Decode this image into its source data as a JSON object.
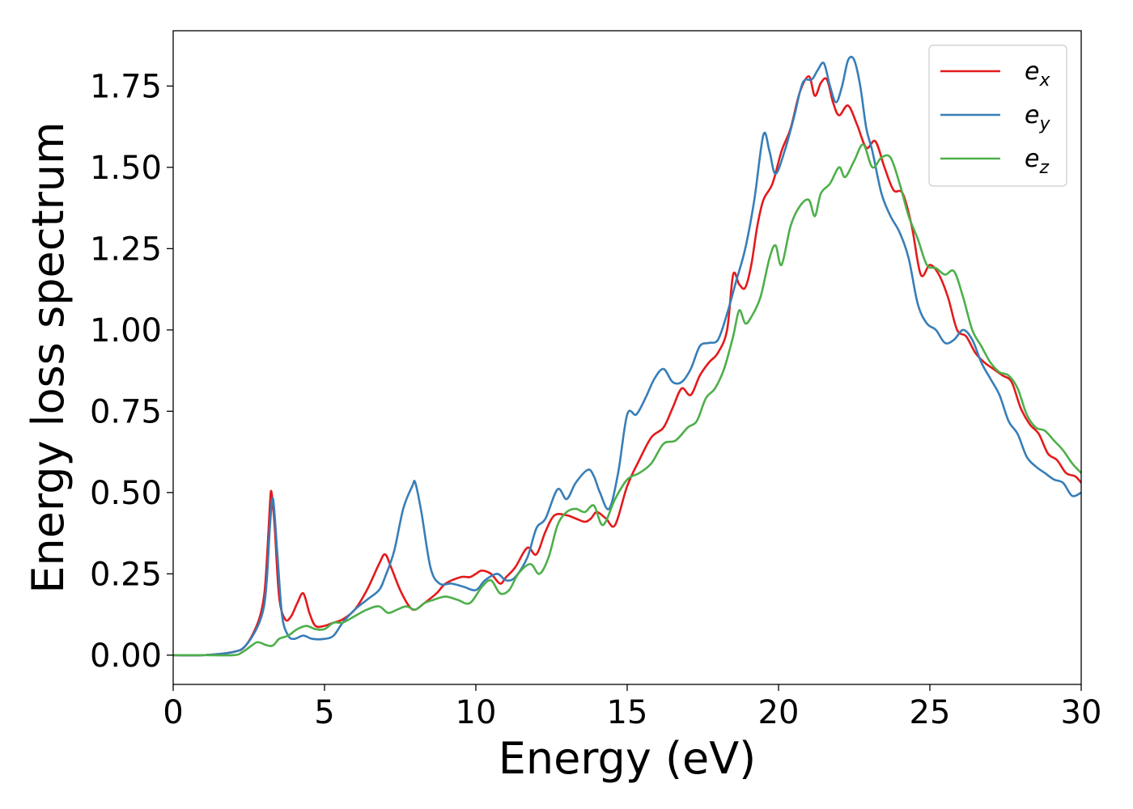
{
  "chart_data": {
    "type": "line",
    "xlabel": "Energy (eV)",
    "ylabel": "Energy loss spectrum",
    "xlim": [
      0,
      30
    ],
    "ylim": [
      -0.09,
      1.92
    ],
    "xticks": [
      0,
      5,
      10,
      15,
      20,
      25,
      30
    ],
    "xtick_labels": [
      "0",
      "5",
      "10",
      "15",
      "20",
      "25",
      "30"
    ],
    "yticks": [
      0.0,
      0.25,
      0.5,
      0.75,
      1.0,
      1.25,
      1.5,
      1.75
    ],
    "ytick_labels": [
      "0.00",
      "0.25",
      "0.50",
      "0.75",
      "1.00",
      "1.25",
      "1.50",
      "1.75"
    ],
    "grid": false,
    "legend_position": "top-right",
    "series": [
      {
        "name": "e",
        "subscript": "x",
        "color": "#e41a1c",
        "x": [
          0,
          1,
          2,
          2.4,
          2.8,
          3.0,
          3.1,
          3.2,
          3.25,
          3.35,
          3.5,
          3.7,
          3.9,
          4.1,
          4.3,
          4.5,
          4.7,
          5.0,
          5.3,
          5.6,
          6.0,
          6.4,
          6.8,
          7.0,
          7.2,
          7.5,
          7.8,
          8.0,
          8.3,
          8.7,
          9.0,
          9.5,
          9.8,
          10.0,
          10.2,
          10.5,
          10.8,
          11.0,
          11.3,
          11.7,
          12.0,
          12.3,
          12.6,
          13.0,
          13.3,
          13.6,
          13.8,
          14.0,
          14.3,
          14.6,
          15.0,
          15.4,
          15.8,
          16.2,
          16.5,
          16.8,
          17.1,
          17.4,
          17.7,
          18.0,
          18.3,
          18.5,
          18.7,
          18.9,
          19.1,
          19.3,
          19.5,
          19.8,
          20.1,
          20.4,
          20.7,
          21.0,
          21.2,
          21.4,
          21.6,
          21.8,
          22.0,
          22.3,
          22.6,
          22.9,
          23.2,
          23.5,
          23.8,
          24.1,
          24.4,
          24.7,
          25.0,
          25.3,
          25.6,
          25.9,
          26.2,
          26.5,
          26.8,
          27.1,
          27.4,
          27.7,
          28.0,
          28.3,
          28.6,
          28.9,
          29.2,
          29.5,
          29.8,
          30
        ],
        "values": [
          0.0,
          0.0,
          0.01,
          0.03,
          0.1,
          0.18,
          0.3,
          0.47,
          0.5,
          0.4,
          0.18,
          0.11,
          0.12,
          0.16,
          0.19,
          0.13,
          0.09,
          0.09,
          0.1,
          0.11,
          0.14,
          0.2,
          0.28,
          0.31,
          0.27,
          0.2,
          0.15,
          0.14,
          0.16,
          0.19,
          0.22,
          0.24,
          0.24,
          0.25,
          0.26,
          0.25,
          0.22,
          0.24,
          0.27,
          0.33,
          0.31,
          0.38,
          0.43,
          0.43,
          0.42,
          0.41,
          0.42,
          0.44,
          0.42,
          0.4,
          0.52,
          0.6,
          0.67,
          0.7,
          0.76,
          0.82,
          0.8,
          0.86,
          0.9,
          0.93,
          1.0,
          1.17,
          1.14,
          1.13,
          1.2,
          1.32,
          1.4,
          1.45,
          1.55,
          1.62,
          1.73,
          1.78,
          1.72,
          1.76,
          1.77,
          1.7,
          1.66,
          1.69,
          1.63,
          1.56,
          1.58,
          1.5,
          1.43,
          1.42,
          1.32,
          1.17,
          1.2,
          1.17,
          1.1,
          1.0,
          0.98,
          0.93,
          0.9,
          0.88,
          0.86,
          0.84,
          0.76,
          0.71,
          0.68,
          0.62,
          0.6,
          0.56,
          0.55,
          0.53
        ]
      },
      {
        "name": "e",
        "subscript": "y",
        "color": "#377eb8",
        "x": [
          0,
          1,
          2,
          2.4,
          2.8,
          3.0,
          3.1,
          3.2,
          3.3,
          3.45,
          3.6,
          3.8,
          4.0,
          4.3,
          4.6,
          5.0,
          5.3,
          5.6,
          6.0,
          6.4,
          6.8,
          7.0,
          7.3,
          7.6,
          7.9,
          8.0,
          8.2,
          8.5,
          8.8,
          9.2,
          9.6,
          10.0,
          10.3,
          10.7,
          11.0,
          11.3,
          11.7,
          12.0,
          12.3,
          12.7,
          13.0,
          13.3,
          13.7,
          13.9,
          14.1,
          14.4,
          14.7,
          15.0,
          15.3,
          15.6,
          15.9,
          16.2,
          16.5,
          16.8,
          17.1,
          17.4,
          17.7,
          18.0,
          18.3,
          18.6,
          18.9,
          19.2,
          19.5,
          19.7,
          19.9,
          20.2,
          20.5,
          20.8,
          21.1,
          21.3,
          21.5,
          21.7,
          21.9,
          22.1,
          22.3,
          22.5,
          22.7,
          22.9,
          23.1,
          23.4,
          23.7,
          24.0,
          24.3,
          24.6,
          24.9,
          25.2,
          25.5,
          25.8,
          26.1,
          26.4,
          26.7,
          27.0,
          27.3,
          27.6,
          27.9,
          28.2,
          28.5,
          28.8,
          29.1,
          29.4,
          29.7,
          30
        ],
        "values": [
          0.0,
          0.0,
          0.01,
          0.03,
          0.09,
          0.15,
          0.24,
          0.4,
          0.48,
          0.3,
          0.12,
          0.06,
          0.05,
          0.06,
          0.05,
          0.05,
          0.06,
          0.1,
          0.14,
          0.17,
          0.2,
          0.24,
          0.32,
          0.45,
          0.52,
          0.53,
          0.44,
          0.27,
          0.22,
          0.22,
          0.21,
          0.2,
          0.23,
          0.25,
          0.23,
          0.24,
          0.3,
          0.39,
          0.42,
          0.51,
          0.48,
          0.53,
          0.57,
          0.55,
          0.5,
          0.45,
          0.56,
          0.74,
          0.74,
          0.79,
          0.85,
          0.88,
          0.84,
          0.84,
          0.88,
          0.95,
          0.96,
          0.97,
          1.05,
          1.15,
          1.25,
          1.4,
          1.6,
          1.55,
          1.48,
          1.55,
          1.65,
          1.76,
          1.77,
          1.8,
          1.82,
          1.75,
          1.7,
          1.75,
          1.83,
          1.83,
          1.75,
          1.62,
          1.55,
          1.42,
          1.35,
          1.3,
          1.22,
          1.08,
          1.02,
          1.0,
          0.96,
          0.97,
          1.0,
          0.97,
          0.9,
          0.85,
          0.8,
          0.72,
          0.68,
          0.61,
          0.58,
          0.56,
          0.54,
          0.53,
          0.49,
          0.5
        ]
      },
      {
        "name": "e",
        "subscript": "z",
        "color": "#4daf4a",
        "x": [
          0,
          1,
          2,
          2.3,
          2.6,
          2.8,
          3.1,
          3.3,
          3.5,
          3.8,
          4.1,
          4.4,
          4.7,
          5.0,
          5.3,
          5.6,
          6.0,
          6.4,
          6.8,
          7.1,
          7.4,
          7.7,
          8.0,
          8.3,
          8.6,
          9.0,
          9.4,
          9.8,
          10.2,
          10.5,
          10.8,
          11.1,
          11.4,
          11.8,
          12.1,
          12.4,
          12.7,
          13.0,
          13.3,
          13.6,
          13.9,
          14.2,
          14.6,
          15.0,
          15.4,
          15.8,
          16.2,
          16.6,
          17.0,
          17.3,
          17.6,
          17.9,
          18.2,
          18.5,
          18.7,
          18.9,
          19.1,
          19.4,
          19.7,
          19.9,
          20.1,
          20.4,
          20.7,
          21.0,
          21.2,
          21.4,
          21.7,
          22.0,
          22.2,
          22.5,
          22.8,
          23.1,
          23.4,
          23.7,
          24.0,
          24.3,
          24.6,
          24.9,
          25.2,
          25.5,
          25.8,
          26.1,
          26.4,
          26.7,
          27.0,
          27.3,
          27.6,
          27.9,
          28.2,
          28.5,
          28.8,
          29.1,
          29.4,
          29.7,
          30
        ],
        "values": [
          0.0,
          0.0,
          0.0,
          0.01,
          0.03,
          0.04,
          0.03,
          0.03,
          0.05,
          0.06,
          0.08,
          0.09,
          0.08,
          0.08,
          0.1,
          0.1,
          0.12,
          0.14,
          0.15,
          0.13,
          0.14,
          0.15,
          0.14,
          0.16,
          0.17,
          0.18,
          0.17,
          0.16,
          0.21,
          0.23,
          0.19,
          0.2,
          0.25,
          0.28,
          0.25,
          0.3,
          0.4,
          0.44,
          0.45,
          0.44,
          0.46,
          0.4,
          0.48,
          0.54,
          0.56,
          0.59,
          0.65,
          0.66,
          0.7,
          0.72,
          0.79,
          0.82,
          0.88,
          0.98,
          1.06,
          1.02,
          1.04,
          1.1,
          1.22,
          1.26,
          1.2,
          1.32,
          1.38,
          1.4,
          1.35,
          1.42,
          1.45,
          1.5,
          1.47,
          1.52,
          1.57,
          1.5,
          1.53,
          1.53,
          1.45,
          1.35,
          1.28,
          1.2,
          1.19,
          1.17,
          1.18,
          1.1,
          1.0,
          0.95,
          0.9,
          0.87,
          0.86,
          0.82,
          0.74,
          0.7,
          0.69,
          0.66,
          0.63,
          0.59,
          0.56
        ]
      }
    ]
  },
  "colors": {
    "axes_frame": "#000000",
    "legend_border": "#cccccc",
    "background": "#ffffff"
  }
}
